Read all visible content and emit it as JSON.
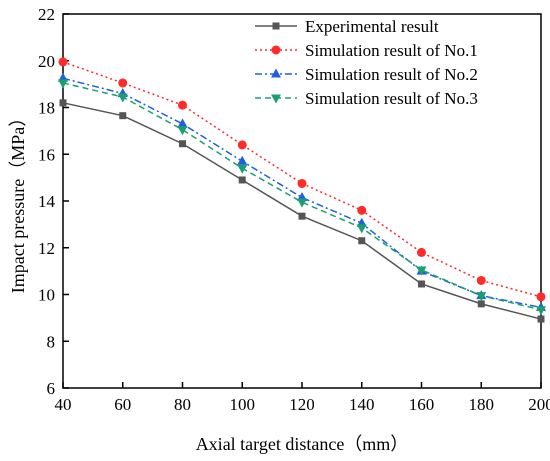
{
  "chart_data": {
    "type": "line",
    "title": "",
    "xlabel": "Axial target distance（mm）",
    "ylabel": "Impact pressure（MPa）",
    "x": [
      40,
      60,
      80,
      100,
      120,
      140,
      160,
      180,
      200
    ],
    "xlim": [
      40,
      200
    ],
    "ylim": [
      6,
      22
    ],
    "xticks": [
      40,
      60,
      80,
      100,
      120,
      140,
      160,
      180,
      200
    ],
    "yticks": [
      6,
      8,
      10,
      12,
      14,
      16,
      18,
      20,
      22
    ],
    "grid": false,
    "legend_position": "top-right",
    "series": [
      {
        "name": "Experimental result",
        "values": [
          18.2,
          17.65,
          16.45,
          14.9,
          13.35,
          12.3,
          10.45,
          9.6,
          8.95
        ],
        "color": "#555555",
        "line": "solid",
        "marker": "square"
      },
      {
        "name": "Simulation result of No.1",
        "values": [
          19.95,
          19.05,
          18.1,
          16.4,
          14.75,
          13.6,
          11.8,
          10.6,
          9.9
        ],
        "color": "#ff2a2a",
        "line": "dotted",
        "marker": "circle"
      },
      {
        "name": "Simulation result of No.2",
        "values": [
          19.25,
          18.6,
          17.3,
          15.7,
          14.15,
          13.05,
          11.0,
          9.95,
          9.45
        ],
        "color": "#1f5fe0",
        "line": "dash-dot",
        "marker": "triangle-up"
      },
      {
        "name": "Simulation result of No.3",
        "values": [
          19.05,
          18.45,
          17.05,
          15.4,
          13.95,
          12.85,
          11.05,
          9.95,
          9.35
        ],
        "color": "#1aa070",
        "line": "dashed",
        "marker": "triangle-down"
      }
    ]
  }
}
